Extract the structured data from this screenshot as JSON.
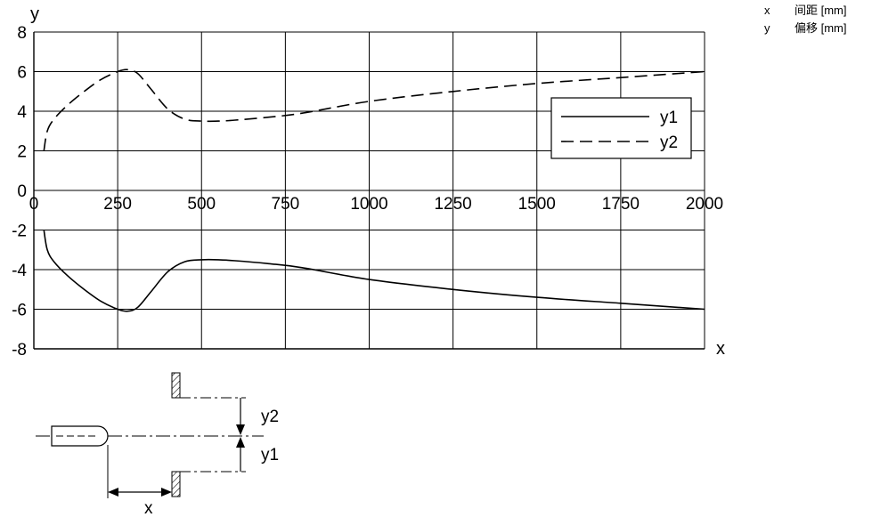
{
  "chart_data": {
    "type": "line",
    "xlabel": "x",
    "ylabel": "y",
    "xlim": [
      0,
      2000
    ],
    "ylim": [
      -8,
      8
    ],
    "xticks": [
      0,
      250,
      500,
      750,
      1000,
      1250,
      1500,
      1750,
      2000
    ],
    "yticks": [
      8,
      6,
      4,
      2,
      0,
      -2,
      -4,
      -6,
      -8
    ],
    "grid": true,
    "legend_position": "right",
    "series": [
      {
        "name": "y1",
        "style": "solid",
        "x": [
          30,
          40,
          60,
          100,
          150,
          200,
          250,
          280,
          310,
          350,
          400,
          450,
          500,
          550,
          600,
          700,
          800,
          1000,
          1250,
          1500,
          1750,
          2000
        ],
        "y": [
          -2.0,
          -3.0,
          -3.6,
          -4.3,
          -5.0,
          -5.6,
          -6.0,
          -6.1,
          -5.9,
          -5.1,
          -4.1,
          -3.6,
          -3.5,
          -3.5,
          -3.55,
          -3.7,
          -3.9,
          -4.5,
          -5.0,
          -5.4,
          -5.7,
          -6.0
        ]
      },
      {
        "name": "y2",
        "style": "dashed",
        "x": [
          30,
          40,
          60,
          100,
          150,
          200,
          250,
          280,
          310,
          350,
          400,
          450,
          500,
          550,
          600,
          700,
          800,
          1000,
          1250,
          1500,
          1750,
          2000
        ],
        "y": [
          2.0,
          3.0,
          3.6,
          4.3,
          5.0,
          5.6,
          6.0,
          6.1,
          5.9,
          5.1,
          4.1,
          3.6,
          3.5,
          3.5,
          3.55,
          3.7,
          3.9,
          4.5,
          5.0,
          5.4,
          5.7,
          6.0
        ]
      }
    ]
  },
  "diagram": {
    "label_y2": "y2",
    "label_y1": "y1",
    "label_x": "x"
  },
  "key": [
    {
      "symbol": "x",
      "text": "间距 [mm]"
    },
    {
      "symbol": "y",
      "text": "偏移 [mm]"
    }
  ]
}
